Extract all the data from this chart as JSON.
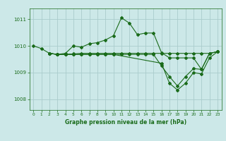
{
  "background_color": "#cce8e8",
  "grid_color": "#aacccc",
  "line_color": "#1a6b1a",
  "xlim": [
    -0.5,
    23.5
  ],
  "ylim": [
    1007.6,
    1011.4
  ],
  "xlabel": "Graphe pression niveau de la mer (hPa)",
  "xticks": [
    0,
    1,
    2,
    3,
    4,
    5,
    6,
    7,
    8,
    9,
    10,
    11,
    12,
    13,
    14,
    15,
    16,
    17,
    18,
    19,
    20,
    21,
    22,
    23
  ],
  "yticks": [
    1008,
    1009,
    1010,
    1011
  ],
  "line1_x": [
    0,
    1,
    2,
    3,
    4,
    5,
    6,
    7,
    8,
    9,
    10,
    11,
    12,
    13,
    14,
    15,
    16,
    17,
    18,
    19,
    20,
    21,
    22,
    23
  ],
  "line1_y": [
    1010.0,
    1009.9,
    1009.72,
    1009.68,
    1009.72,
    1010.0,
    1009.95,
    1010.08,
    1010.12,
    1010.22,
    1010.38,
    1011.05,
    1010.85,
    1010.42,
    1010.48,
    1010.48,
    1009.75,
    1009.55,
    1009.55,
    1009.55,
    1009.55,
    1009.12,
    1009.72,
    1009.78
  ],
  "line2_x": [
    2,
    3,
    4,
    5,
    6,
    7,
    8,
    9,
    10,
    11,
    12,
    13,
    14,
    15,
    16,
    17,
    18,
    19,
    20,
    21,
    22,
    23
  ],
  "line2_y": [
    1009.72,
    1009.68,
    1009.68,
    1009.7,
    1009.72,
    1009.72,
    1009.72,
    1009.72,
    1009.72,
    1009.72,
    1009.72,
    1009.72,
    1009.72,
    1009.72,
    1009.72,
    1009.72,
    1009.72,
    1009.72,
    1009.72,
    1009.72,
    1009.72,
    1009.78
  ],
  "line3_x": [
    2,
    3,
    4,
    5,
    6,
    7,
    8,
    9,
    10,
    11,
    12,
    13,
    14,
    15,
    16,
    17,
    18,
    19,
    20,
    21,
    22,
    23
  ],
  "line3_y": [
    1009.72,
    1009.68,
    1009.68,
    1009.68,
    1009.68,
    1009.68,
    1009.68,
    1009.68,
    1009.68,
    1009.68,
    1009.68,
    1009.68,
    1009.68,
    1009.68,
    1009.25,
    1008.85,
    1008.5,
    1008.85,
    1009.15,
    1009.12,
    1009.72,
    1009.78
  ],
  "line4_x": [
    2,
    3,
    4,
    5,
    6,
    7,
    8,
    9,
    10,
    16,
    17,
    18,
    19,
    20,
    21,
    22,
    23
  ],
  "line4_y": [
    1009.72,
    1009.68,
    1009.68,
    1009.68,
    1009.68,
    1009.68,
    1009.68,
    1009.68,
    1009.68,
    1009.35,
    1008.6,
    1008.35,
    1008.6,
    1009.0,
    1008.95,
    1009.55,
    1009.78
  ]
}
